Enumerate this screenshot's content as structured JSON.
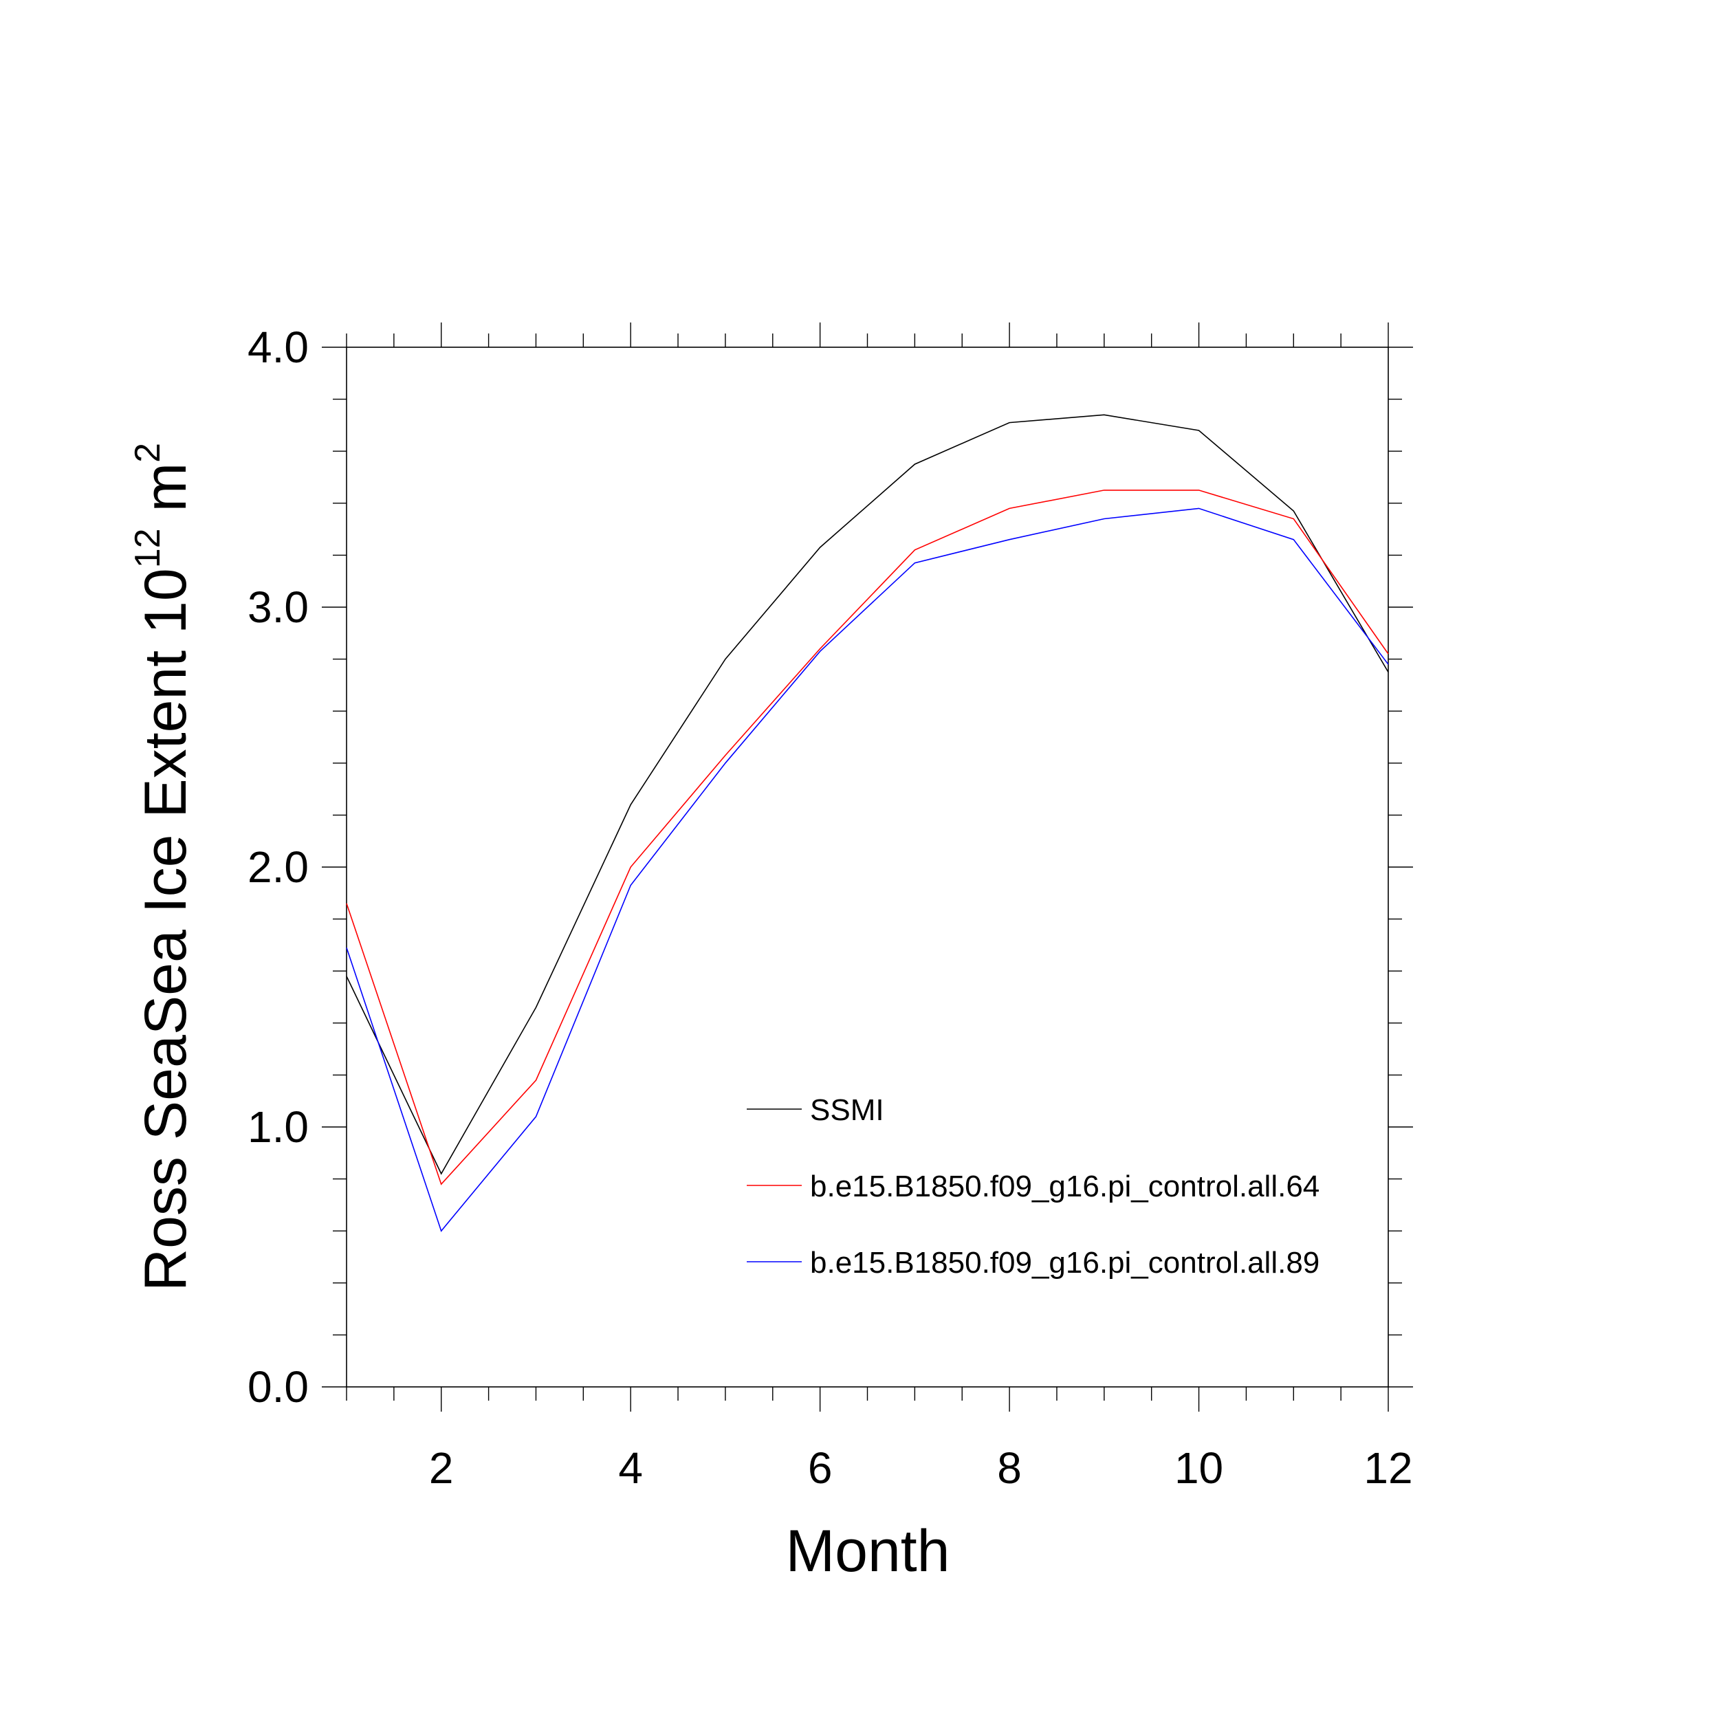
{
  "chart_data": {
    "type": "line",
    "xlabel": "Month",
    "ylabel": {
      "text": "Ross SeaSea Ice Extent 10",
      "exponent": "12",
      "unit": " m",
      "unit_exponent": "2"
    },
    "xlim": [
      1,
      12
    ],
    "ylim": [
      0,
      4
    ],
    "x_ticks": [
      2,
      4,
      6,
      8,
      10,
      12
    ],
    "x_tick_labels": [
      "2",
      "4",
      "6",
      "8",
      "10",
      "12"
    ],
    "y_ticks": [
      0,
      1,
      2,
      3,
      4
    ],
    "y_tick_labels": [
      "0.0",
      "1.0",
      "2.0",
      "3.0",
      "4.0"
    ],
    "grid": false,
    "legend_position": "center-right",
    "x": [
      1,
      2,
      3,
      4,
      5,
      6,
      7,
      8,
      9,
      10,
      11,
      12
    ],
    "series": [
      {
        "name": "SSMI",
        "color": "#000000",
        "values": [
          1.58,
          0.82,
          1.46,
          2.24,
          2.8,
          3.23,
          3.55,
          3.71,
          3.74,
          3.68,
          3.37,
          2.75
        ]
      },
      {
        "name": "b.e15.B1850.f09_g16.pi_control.all.64",
        "color": "#ff0000",
        "values": [
          1.86,
          0.78,
          1.18,
          2.0,
          2.43,
          2.84,
          3.22,
          3.38,
          3.45,
          3.45,
          3.34,
          2.82
        ]
      },
      {
        "name": "b.e15.B1850.f09_g16.pi_control.all.89",
        "color": "#0000ff",
        "values": [
          1.69,
          0.6,
          1.04,
          1.93,
          2.4,
          2.83,
          3.17,
          3.26,
          3.34,
          3.38,
          3.26,
          2.78
        ]
      }
    ]
  }
}
